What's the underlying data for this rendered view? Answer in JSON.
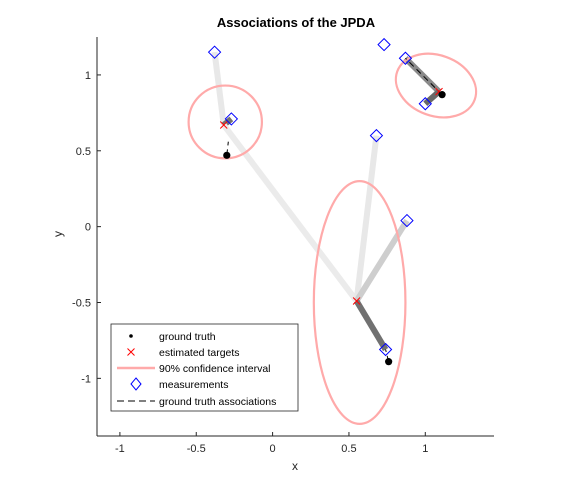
{
  "chart_data": {
    "type": "scatter",
    "title": "Associations of the JPDA",
    "xlabel": "x",
    "ylabel": "y",
    "xlim": [
      -1.15,
      1.45
    ],
    "ylim": [
      -1.38,
      1.25
    ],
    "xticks": [
      -1,
      -0.5,
      0,
      0.5,
      1
    ],
    "xtick_labels": [
      "-1",
      "-0.5",
      "0",
      "0.5",
      "1"
    ],
    "yticks": [
      -1,
      -0.5,
      0,
      0.5,
      1
    ],
    "ytick_labels": [
      "-1",
      "-0.5",
      "0",
      "0.5",
      "1"
    ],
    "grid": false,
    "legend_position": "bottom-left",
    "colors": {
      "ground_truth": "#000000",
      "estimated": "#ff0000",
      "ellipse": "#ffaaaa",
      "measurement": "#0000ff",
      "association_dash": "#000000"
    },
    "ground_truth": [
      {
        "x": -0.3,
        "y": 0.47
      },
      {
        "x": 1.11,
        "y": 0.87
      },
      {
        "x": 0.76,
        "y": -0.89
      }
    ],
    "estimated_targets": [
      {
        "x": -0.32,
        "y": 0.67
      },
      {
        "x": 1.09,
        "y": 0.89
      },
      {
        "x": 0.55,
        "y": -0.49
      }
    ],
    "confidence_ellipses": [
      {
        "cx": -0.31,
        "cy": 0.69,
        "rx": 0.24,
        "ry": 0.24,
        "angle_deg": 0
      },
      {
        "cx": 1.07,
        "cy": 0.93,
        "rx": 0.27,
        "ry": 0.2,
        "angle_deg": 20
      },
      {
        "cx": 0.57,
        "cy": -0.5,
        "rx": 0.3,
        "ry": 0.8,
        "angle_deg": 0
      }
    ],
    "measurements": [
      {
        "x": -0.38,
        "y": 1.15
      },
      {
        "x": 0.73,
        "y": 1.2
      },
      {
        "x": 0.87,
        "y": 1.11
      },
      {
        "x": -0.27,
        "y": 0.71
      },
      {
        "x": 1.0,
        "y": 0.81
      },
      {
        "x": 0.68,
        "y": 0.6
      },
      {
        "x": 0.88,
        "y": 0.04
      },
      {
        "x": 0.74,
        "y": -0.81
      }
    ],
    "association_lines": [
      {
        "from": [
          -0.32,
          0.67
        ],
        "to": [
          -0.38,
          1.15
        ],
        "weight": 0.05
      },
      {
        "from": [
          -0.32,
          0.67
        ],
        "to": [
          -0.27,
          0.71
        ],
        "weight": 0.75
      },
      {
        "from": [
          -0.32,
          0.67
        ],
        "to": [
          0.55,
          -0.49
        ],
        "weight": 0.03
      },
      {
        "from": [
          1.09,
          0.89
        ],
        "to": [
          0.87,
          1.11
        ],
        "weight": 0.6
      },
      {
        "from": [
          1.09,
          0.89
        ],
        "to": [
          1.0,
          0.81
        ],
        "weight": 0.8
      },
      {
        "from": [
          0.55,
          -0.49
        ],
        "to": [
          0.68,
          0.6
        ],
        "weight": 0.05
      },
      {
        "from": [
          0.55,
          -0.49
        ],
        "to": [
          0.88,
          0.04
        ],
        "weight": 0.2
      },
      {
        "from": [
          0.55,
          -0.49
        ],
        "to": [
          0.74,
          -0.81
        ],
        "weight": 0.75
      }
    ],
    "ground_truth_associations": [
      {
        "from": [
          -0.3,
          0.47
        ],
        "to": [
          -0.29,
          0.56
        ]
      },
      {
        "from": [
          1.11,
          0.87
        ],
        "to": [
          0.87,
          1.11
        ]
      },
      {
        "from": [
          0.76,
          -0.89
        ],
        "to": [
          0.74,
          -0.81
        ]
      }
    ],
    "legend": [
      {
        "label": "ground truth",
        "marker": "dot"
      },
      {
        "label": "estimated targets",
        "marker": "x"
      },
      {
        "label": "90% confidence interval",
        "marker": "line"
      },
      {
        "label": "measurements",
        "marker": "diamond"
      },
      {
        "label": "ground truth associations",
        "marker": "dash"
      }
    ]
  }
}
